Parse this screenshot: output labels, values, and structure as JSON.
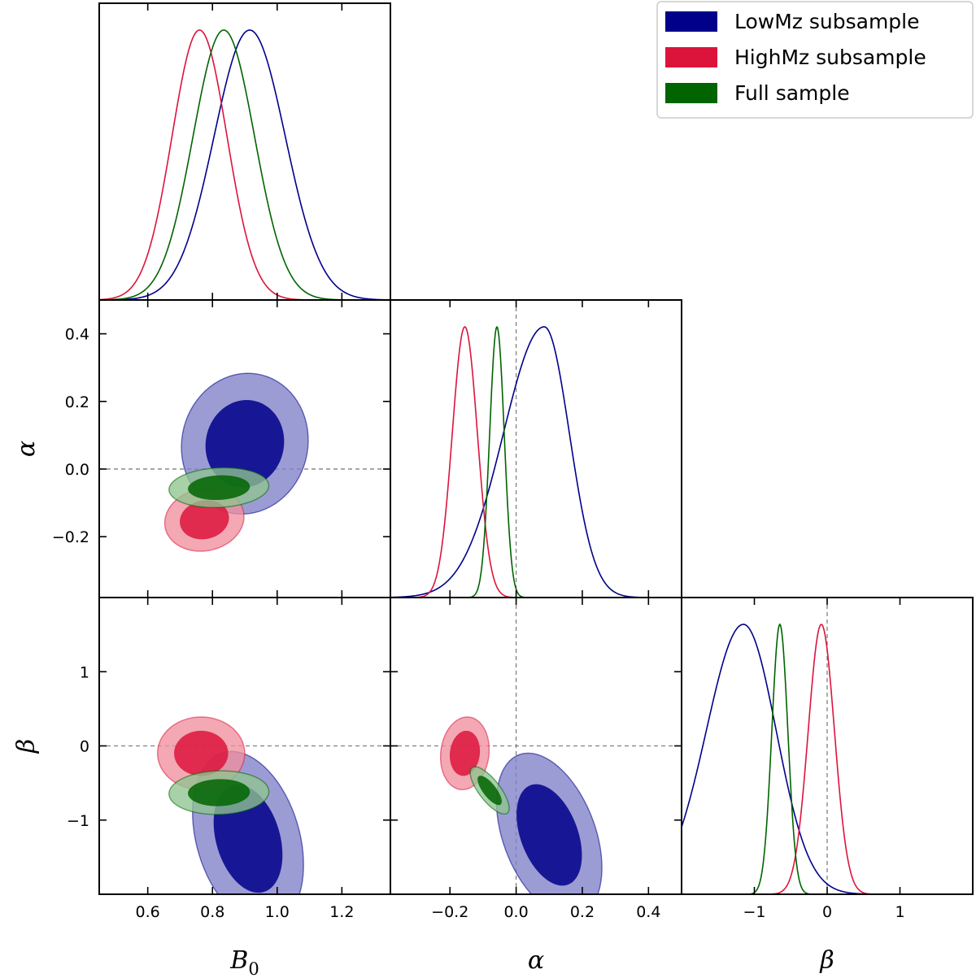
{
  "chart_data": {
    "type": "corner",
    "parameters": [
      {
        "key": "B0",
        "label_main": "B",
        "label_sub": "0",
        "range": [
          0.45,
          1.35
        ],
        "ticks": [
          0.6,
          0.8,
          1.0,
          1.2
        ],
        "tick_labels": [
          "0.6",
          "0.8",
          "1.0",
          "1.2"
        ],
        "reference": null
      },
      {
        "key": "alpha",
        "label_main": "α",
        "label_sub": "",
        "range": [
          -0.38,
          0.5
        ],
        "ticks": [
          -0.2,
          0.0,
          0.2,
          0.4
        ],
        "tick_labels": [
          "−0.2",
          "0.0",
          "0.2",
          "0.4"
        ],
        "reference": 0.0
      },
      {
        "key": "beta",
        "label_main": "β",
        "label_sub": "",
        "range": [
          -2.0,
          2.0
        ],
        "ticks": [
          -1,
          0,
          1
        ],
        "tick_labels": [
          "−1",
          "0",
          "1"
        ],
        "reference": 0.0
      }
    ],
    "series": [
      {
        "name": "LowMz subsample",
        "color": "#00008b",
        "fill": "#8080c8",
        "marginals": {
          "B0": {
            "mean": 0.915,
            "sigma": 0.11
          },
          "alpha": {
            "mean": 0.085,
            "sigma": 0.095,
            "skew": [
              1.3,
              0.8
            ]
          },
          "beta": {
            "mean": -1.15,
            "sigma": 0.6,
            "skew": [
              0.85,
              0.75
            ]
          }
        },
        "contours": {
          "B0_alpha": {
            "center": [
              0.9,
              0.075
            ],
            "sd": [
              0.08,
              0.085
            ],
            "rho": 0.05
          },
          "B0_beta": {
            "center": [
              0.91,
              -1.25
            ],
            "sd": [
              0.07,
              0.48
            ],
            "rho": -0.3
          },
          "alpha_beta": {
            "center": [
              0.1,
              -1.2
            ],
            "sd": [
              0.065,
              0.45
            ],
            "rho": -0.4
          }
        }
      },
      {
        "name": "HighMz subsample",
        "color": "#dc143c",
        "fill": "#f0909e",
        "marginals": {
          "B0": {
            "mean": 0.76,
            "sigma": 0.085
          },
          "alpha": {
            "mean": -0.155,
            "sigma": 0.038
          },
          "beta": {
            "mean": -0.08,
            "sigma": 0.18
          }
        },
        "contours": {
          "B0_alpha": {
            "center": [
              0.775,
              -0.15
            ],
            "sd": [
              0.05,
              0.038
            ],
            "rho": 0.1
          },
          "B0_beta": {
            "center": [
              0.765,
              -0.1
            ],
            "sd": [
              0.055,
              0.2
            ],
            "rho": 0.0
          },
          "alpha_beta": {
            "center": [
              -0.155,
              -0.1
            ],
            "sd": [
              0.03,
              0.2
            ],
            "rho": 0.1
          }
        }
      },
      {
        "name": "Full sample",
        "color": "#006400",
        "fill": "#8fc48f",
        "marginals": {
          "B0": {
            "mean": 0.835,
            "sigma": 0.095
          },
          "alpha": {
            "mean": -0.058,
            "sigma": 0.022
          },
          "beta": {
            "mean": -0.65,
            "sigma": 0.11
          }
        },
        "contours": {
          "B0_alpha": {
            "center": [
              0.82,
              -0.055
            ],
            "sd": [
              0.063,
              0.024
            ],
            "rho": 0.1
          },
          "B0_beta": {
            "center": [
              0.82,
              -0.63
            ],
            "sd": [
              0.063,
              0.12
            ],
            "rho": 0.05
          },
          "alpha_beta": {
            "center": [
              -0.08,
              -0.6
            ],
            "sd": [
              0.024,
              0.13
            ],
            "rho": -0.75
          }
        }
      }
    ],
    "legend": {
      "position": "top-right"
    }
  }
}
